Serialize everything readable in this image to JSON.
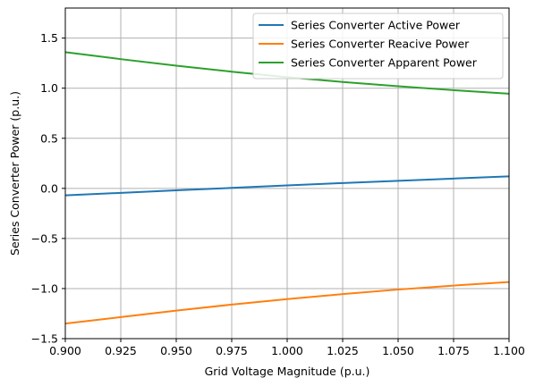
{
  "chart_data": {
    "type": "line",
    "title": "",
    "xlabel": "Grid Voltage Magnitude (p.u.)",
    "ylabel": "Series Converter Power (p.u.)",
    "xlim": [
      0.9,
      1.1
    ],
    "ylim": [
      -1.5,
      1.8
    ],
    "xticks": [
      "0.900",
      "0.925",
      "0.950",
      "0.975",
      "1.000",
      "1.025",
      "1.050",
      "1.075",
      "1.100"
    ],
    "yticks": [
      "−1.5",
      "−1.0",
      "−0.5",
      "0.0",
      "0.5",
      "1.0",
      "1.5"
    ],
    "grid": true,
    "legend_position": "top-right",
    "x": [
      0.9,
      0.925,
      0.95,
      0.975,
      1.0,
      1.025,
      1.05,
      1.075,
      1.1
    ],
    "series": [
      {
        "name": "Series Converter Active Power",
        "color": "#1f77b4",
        "values": [
          -0.07,
          -0.045,
          -0.02,
          0.005,
          0.03,
          0.053,
          0.075,
          0.098,
          0.12
        ]
      },
      {
        "name": "Series Converter Reacive Power",
        "color": "#ff7f0e",
        "values": [
          -1.35,
          -1.285,
          -1.22,
          -1.16,
          -1.105,
          -1.055,
          -1.01,
          -0.97,
          -0.935
        ]
      },
      {
        "name": "Series Converter Apparent Power",
        "color": "#2ca02c",
        "values": [
          1.36,
          1.29,
          1.225,
          1.165,
          1.11,
          1.062,
          1.02,
          0.98,
          0.945
        ]
      }
    ]
  }
}
